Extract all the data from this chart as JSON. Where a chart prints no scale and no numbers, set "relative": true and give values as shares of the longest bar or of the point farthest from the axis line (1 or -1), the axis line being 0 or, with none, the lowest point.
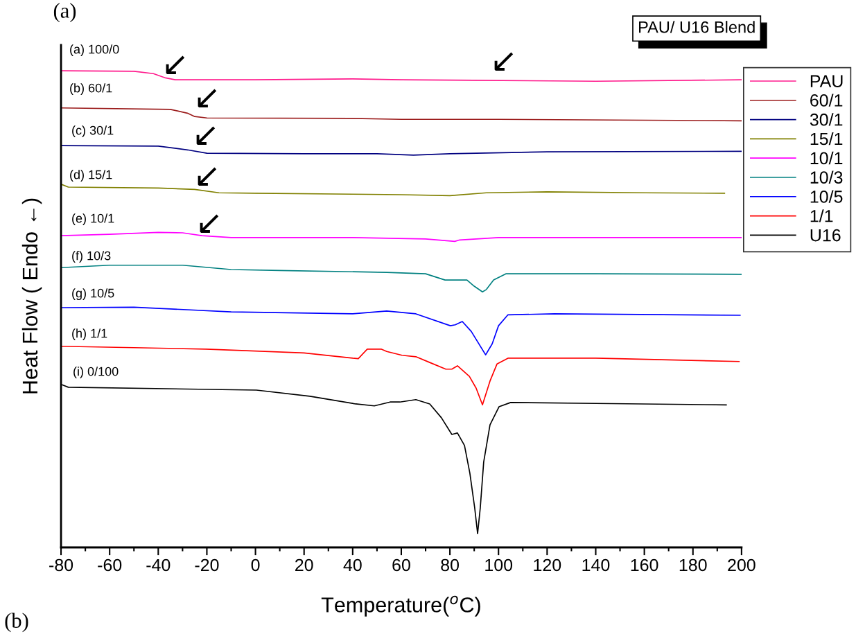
{
  "chart_data": {
    "type": "line",
    "relative": true,
    "xlabel": "Temperature($^{o}$C)",
    "ylabel": "Heat Flow ( Endo ←)",
    "xlim": [
      -80,
      200
    ],
    "xticks": [
      -80,
      -60,
      -40,
      -20,
      0,
      20,
      40,
      60,
      80,
      100,
      120,
      140,
      160,
      180,
      200
    ],
    "legend": "top right",
    "grid": false,
    "marker": "none",
    "line_style": "solid",
    "tick_labels": "x",
    "series": [
      {
        "name": "PAU",
        "color": "#ff1a8c",
        "x": [
          -80,
          -50,
          -42,
          -37,
          -33,
          0,
          40,
          60,
          90,
          140,
          200
        ],
        "values": [
          1.0,
          0.999,
          0.994,
          0.985,
          0.981,
          0.981,
          0.983,
          0.981,
          0.98,
          0.978,
          0.981
        ]
      },
      {
        "name": "60/1",
        "color": "#9b1b1b",
        "x": [
          -80,
          -35,
          -28,
          -25,
          -20,
          40,
          60,
          100,
          200
        ],
        "values": [
          0.922,
          0.919,
          0.911,
          0.904,
          0.901,
          0.9,
          0.898,
          0.898,
          0.895
        ]
      },
      {
        "name": "30/1",
        "color": "#000080",
        "x": [
          -80,
          -40,
          -28,
          -20,
          20,
          50,
          65,
          80,
          120,
          200
        ],
        "values": [
          0.843,
          0.842,
          0.834,
          0.827,
          0.826,
          0.826,
          0.823,
          0.826,
          0.83,
          0.831
        ]
      },
      {
        "name": "15/1",
        "color": "#808000",
        "x": [
          -80,
          -77,
          -40,
          -25,
          -15,
          0,
          40,
          60,
          80,
          95,
          120,
          160,
          193
        ],
        "values": [
          0.762,
          0.756,
          0.754,
          0.751,
          0.744,
          0.743,
          0.741,
          0.74,
          0.738,
          0.744,
          0.746,
          0.744,
          0.743
        ]
      },
      {
        "name": "10/1",
        "color": "#ff00ff",
        "x": [
          -80,
          -60,
          -40,
          -30,
          -22,
          -10,
          40,
          70,
          82,
          84,
          100,
          200
        ],
        "values": [
          0.654,
          0.657,
          0.661,
          0.66,
          0.654,
          0.65,
          0.65,
          0.647,
          0.642,
          0.645,
          0.65,
          0.65
        ]
      },
      {
        "name": "10/3",
        "color": "#008080",
        "x": [
          -80,
          -60,
          -30,
          -10,
          10,
          54,
          70,
          78,
          87,
          90,
          93.4,
          95,
          98,
          103,
          140,
          200
        ],
        "values": [
          0.587,
          0.592,
          0.592,
          0.583,
          0.581,
          0.577,
          0.574,
          0.561,
          0.561,
          0.548,
          0.536,
          0.541,
          0.561,
          0.574,
          0.574,
          0.573
        ]
      },
      {
        "name": "10/5",
        "color": "#0000ff",
        "x": [
          -80,
          -50,
          -10,
          40,
          54,
          66,
          80.2,
          82.2,
          85.1,
          88.8,
          94.7,
          97.4,
          100,
          103.9,
          123,
          199.4
        ],
        "values": [
          0.503,
          0.504,
          0.494,
          0.49,
          0.496,
          0.49,
          0.465,
          0.467,
          0.474,
          0.453,
          0.404,
          0.427,
          0.465,
          0.488,
          0.49,
          0.487
        ]
      },
      {
        "name": "1/1",
        "color": "#ff0000",
        "x": [
          -80,
          -50,
          -20.4,
          20,
          40,
          42.3,
          46,
          51.7,
          54,
          60.3,
          66,
          71.7,
          78.3,
          80.8,
          83.1,
          88,
          90.8,
          93.4,
          96.5,
          99.4,
          103.9,
          140,
          199
        ],
        "values": [
          0.422,
          0.419,
          0.416,
          0.408,
          0.397,
          0.396,
          0.416,
          0.416,
          0.411,
          0.403,
          0.4,
          0.388,
          0.374,
          0.374,
          0.381,
          0.359,
          0.334,
          0.299,
          0.349,
          0.385,
          0.397,
          0.397,
          0.39
        ]
      },
      {
        "name": "U16",
        "color": "#000000",
        "x": [
          -80,
          -77,
          0.4,
          22.4,
          41.2,
          48.9,
          55.4,
          59.4,
          66,
          71.7,
          76.5,
          80.8,
          83.1,
          86,
          88.2,
          90.2,
          91.4,
          92.5,
          93.9,
          96.5,
          100.2,
          105,
          140,
          193.7
        ],
        "values": [
          0.342,
          0.336,
          0.33,
          0.317,
          0.301,
          0.297,
          0.305,
          0.305,
          0.31,
          0.301,
          0.272,
          0.237,
          0.24,
          0.214,
          0.156,
          0.083,
          0.029,
          0.083,
          0.179,
          0.257,
          0.295,
          0.304,
          0.302,
          0.299
        ]
      }
    ],
    "annotations": [
      "(a)",
      "PAU/ U16 Blend",
      "(b)",
      "(a) 100/0",
      "(b) 60/1",
      "(c) 30/1",
      "(d) 15/1",
      "(e) 10/1",
      "(f) 10/3",
      "(g) 10/5",
      "(h) 1/1",
      "(i) 0/100",
      "↙",
      "↙",
      "↙",
      "↙",
      "↙",
      "↙"
    ]
  }
}
